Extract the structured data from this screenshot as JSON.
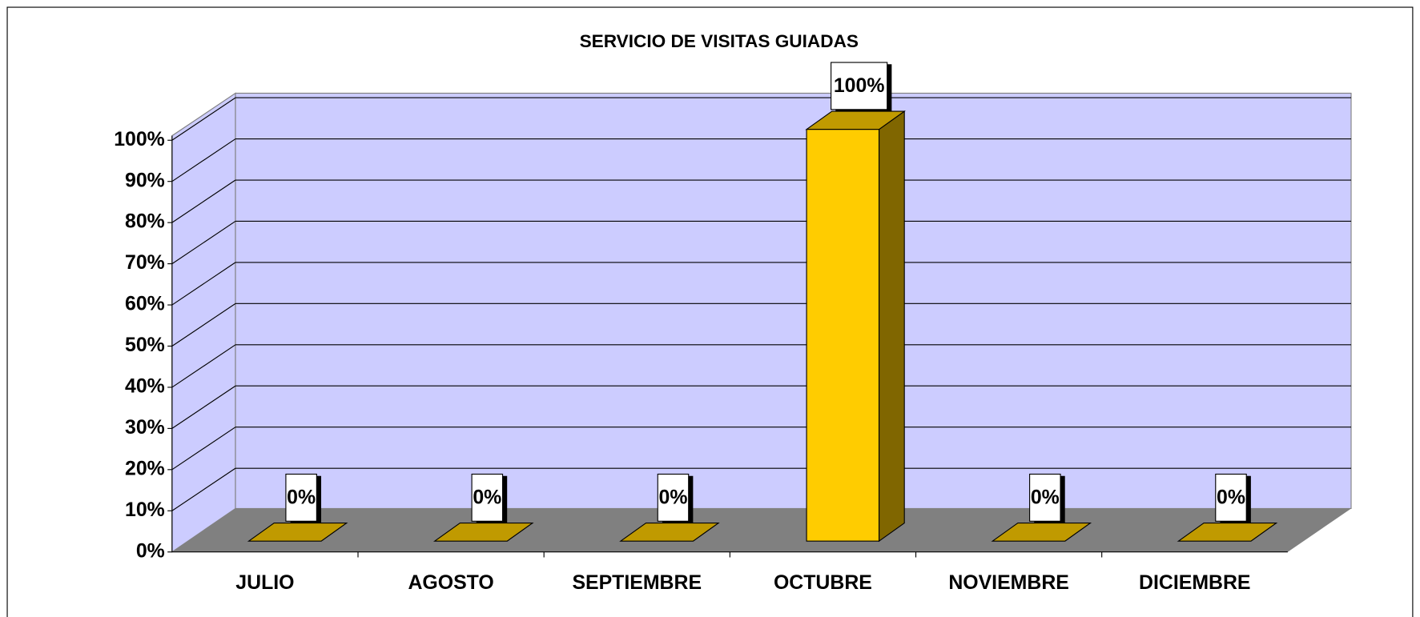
{
  "chart_data": {
    "type": "bar3d",
    "title": "SERVICIO DE VISITAS GUIADAS",
    "categories": [
      "JULIO",
      "AGOSTO",
      "SEPTIEMBRE",
      "OCTUBRE",
      "NOVIEMBRE",
      "DICIEMBRE"
    ],
    "values": [
      0,
      0,
      0,
      100,
      0,
      0
    ],
    "value_labels": [
      "0%",
      "0%",
      "0%",
      "100%",
      "0%",
      "0%"
    ],
    "color": "#ffcc00",
    "ylim": [
      0,
      100
    ],
    "yticks": [
      {
        "value": 0,
        "label": "0%"
      },
      {
        "value": 10,
        "label": "10%"
      },
      {
        "value": 20,
        "label": "20%"
      },
      {
        "value": 30,
        "label": "30%"
      },
      {
        "value": 40,
        "label": "40%"
      },
      {
        "value": 50,
        "label": "50%"
      },
      {
        "value": 60,
        "label": "60%"
      },
      {
        "value": 70,
        "label": "70%"
      },
      {
        "value": 80,
        "label": "80%"
      },
      {
        "value": 90,
        "label": "90%"
      },
      {
        "value": 100,
        "label": "100%"
      }
    ],
    "grid": true
  }
}
